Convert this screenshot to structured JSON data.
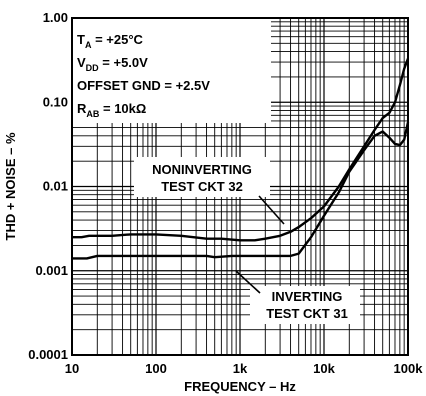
{
  "chart_data": {
    "type": "line",
    "xlabel": "FREQUENCY – Hz",
    "ylabel": "THD + NOISE – %",
    "xscale": "log",
    "yscale": "log",
    "xlim": [
      10,
      100000
    ],
    "ylim": [
      0.0001,
      1
    ],
    "x_ticks": [
      "10",
      "100",
      "1k",
      "10k",
      "100k"
    ],
    "y_ticks": [
      "1.00",
      "0.10",
      "0.01",
      "0.001",
      "0.0001"
    ],
    "grid": true,
    "conditions": [
      {
        "main": "T",
        "sub": "A",
        "rest": " = +25°C"
      },
      {
        "main": "V",
        "sub": "DD",
        "rest": " = +5.0V"
      },
      {
        "main": "OFFSET GND = +2.5V",
        "sub": "",
        "rest": ""
      },
      {
        "main": "R",
        "sub": "AB",
        "rest": " = 10kΩ"
      }
    ],
    "annotations": [
      {
        "line1": "NONINVERTING",
        "line2": "TEST CKT 32"
      },
      {
        "line1": "INVERTING",
        "line2": "TEST CKT 31"
      }
    ],
    "series": [
      {
        "name": "NONINVERTING TEST CKT 32",
        "x": [
          10,
          13,
          16,
          20,
          30,
          50,
          100,
          200,
          400,
          600,
          1000,
          1500,
          2000,
          3000,
          4000,
          5000,
          7000,
          10000,
          15000,
          20000,
          30000,
          40000,
          50000,
          60000,
          70000,
          80000,
          90000,
          100000
        ],
        "y": [
          0.0025,
          0.0025,
          0.0026,
          0.0026,
          0.0026,
          0.0027,
          0.0027,
          0.0026,
          0.0024,
          0.0024,
          0.0023,
          0.0023,
          0.0024,
          0.0026,
          0.0029,
          0.0033,
          0.0042,
          0.0058,
          0.01,
          0.016,
          0.03,
          0.047,
          0.065,
          0.075,
          0.1,
          0.16,
          0.25,
          0.33
        ]
      },
      {
        "name": "INVERTING TEST CKT 31",
        "x": [
          10,
          15,
          20,
          30,
          50,
          100,
          200,
          400,
          500,
          800,
          1000,
          2000,
          3000,
          4000,
          5000,
          7000,
          10000,
          15000,
          20000,
          30000,
          40000,
          50000,
          60000,
          70000,
          80000,
          90000,
          100000
        ],
        "y": [
          0.0014,
          0.0014,
          0.0015,
          0.0015,
          0.0015,
          0.0015,
          0.0015,
          0.0015,
          0.00145,
          0.0015,
          0.0015,
          0.0015,
          0.0015,
          0.0015,
          0.0016,
          0.0025,
          0.0045,
          0.0085,
          0.015,
          0.027,
          0.04,
          0.045,
          0.038,
          0.032,
          0.031,
          0.036,
          0.058
        ]
      }
    ]
  }
}
